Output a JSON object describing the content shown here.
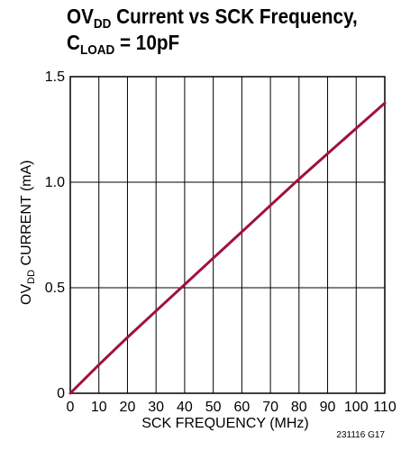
{
  "chart_data": {
    "type": "line",
    "title": {
      "line1_main": "OV",
      "line1_sub": "DD",
      "line1_rest": " Current vs SCK Frequency,",
      "line2_main": "C",
      "line2_sub": "LOAD",
      "line2_rest": " = 10pF"
    },
    "xlabel": "SCK FREQUENCY (MHz)",
    "ylabel": {
      "main": "OV",
      "sub": "DD",
      "rest": " CURRENT (mA)"
    },
    "xlim": [
      0,
      110
    ],
    "ylim": [
      0,
      1.5
    ],
    "x_ticks": [
      0,
      10,
      20,
      30,
      40,
      50,
      60,
      70,
      80,
      90,
      100,
      110
    ],
    "y_ticks": [
      0,
      0.5,
      1.0,
      1.5
    ],
    "y_tick_labels": [
      "0",
      "0.5",
      "1.0",
      "1.5"
    ],
    "grid": true,
    "line_color": "#a0123a",
    "series": [
      {
        "x": [
          0,
          10,
          20,
          30,
          40,
          50,
          60,
          70,
          80,
          90,
          100,
          110
        ],
        "y": [
          0.0,
          0.135,
          0.265,
          0.39,
          0.515,
          0.64,
          0.765,
          0.89,
          1.015,
          1.135,
          1.255,
          1.375
        ]
      }
    ]
  },
  "credit": "231116 G17"
}
